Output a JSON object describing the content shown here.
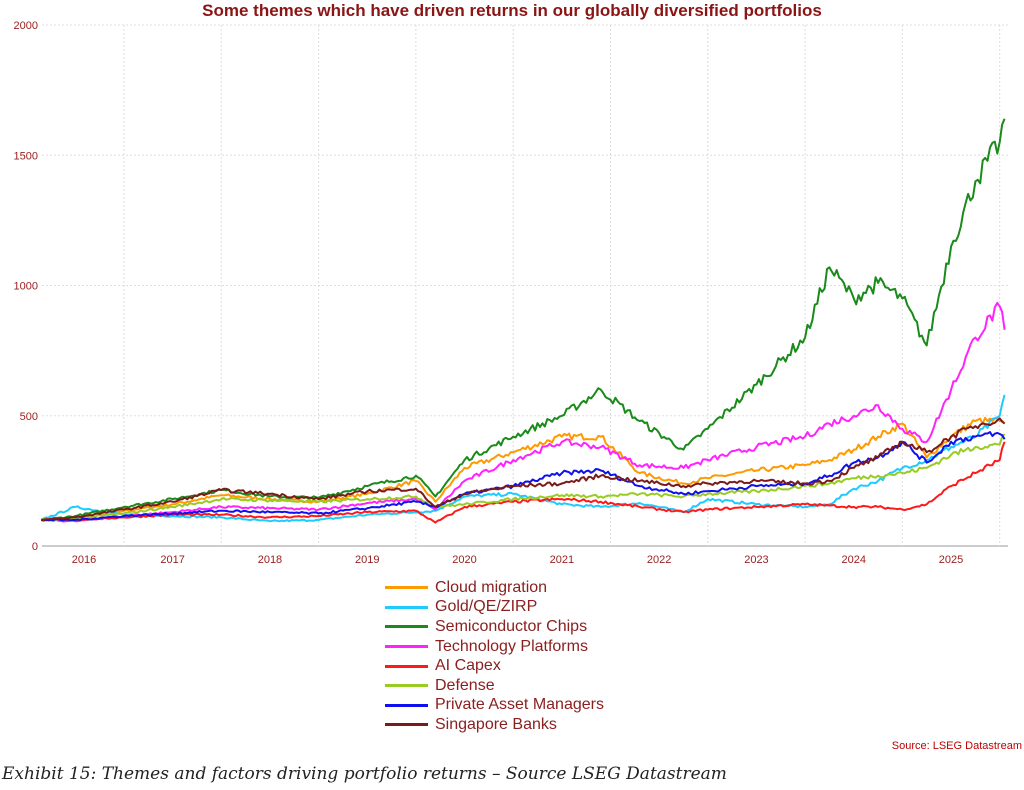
{
  "chart_data": {
    "type": "line",
    "title": "Some themes which have driven returns in our globally diversified portfolios",
    "xlabel": "",
    "ylabel": "",
    "ylim": [
      0,
      2000
    ],
    "yticks": [
      "0",
      "500",
      "1000",
      "1500",
      "2000"
    ],
    "ytick_values": [
      0,
      500,
      1000,
      1500,
      2000
    ],
    "xlim": [
      2016,
      2026.06
    ],
    "xticks": [
      "2016",
      "2017",
      "2018",
      "2019",
      "2020",
      "2021",
      "2022",
      "2023",
      "2024",
      "2025"
    ],
    "grid": true,
    "legend_position": "bottom-center",
    "x": [
      2016.15,
      2016.5,
      2017.0,
      2017.5,
      2018.0,
      2018.5,
      2019.0,
      2019.5,
      2020.0,
      2020.2,
      2020.5,
      2021.0,
      2021.5,
      2021.9,
      2022.3,
      2022.75,
      2023.0,
      2023.5,
      2024.0,
      2024.25,
      2024.5,
      2024.75,
      2025.0,
      2025.25,
      2025.5,
      2025.75,
      2026.0,
      2026.05
    ],
    "series": [
      {
        "name": "Cloud migration",
        "color": "#ff9900",
        "values": [
          100,
          110,
          135,
          160,
          195,
          180,
          170,
          200,
          250,
          170,
          300,
          360,
          420,
          420,
          280,
          240,
          260,
          290,
          310,
          330,
          370,
          420,
          470,
          340,
          420,
          480,
          480,
          470
        ]
      },
      {
        "name": "Gold/QE/ZIRP",
        "color": "#1ecbff",
        "values": [
          100,
          150,
          120,
          115,
          110,
          95,
          100,
          120,
          130,
          135,
          190,
          200,
          160,
          150,
          165,
          130,
          180,
          160,
          150,
          160,
          220,
          250,
          300,
          330,
          380,
          420,
          500,
          580
        ]
      },
      {
        "name": "Semiconductor Chips",
        "color": "#1a8a1a",
        "values": [
          100,
          115,
          150,
          180,
          215,
          190,
          185,
          230,
          270,
          190,
          330,
          420,
          500,
          600,
          480,
          370,
          450,
          620,
          800,
          1070,
          950,
          1010,
          950,
          770,
          1150,
          1400,
          1550,
          1640
        ]
      },
      {
        "name": "Technology Platforms",
        "color": "#ff22ff",
        "values": [
          100,
          95,
          115,
          130,
          150,
          145,
          140,
          165,
          180,
          140,
          250,
          330,
          400,
          380,
          310,
          300,
          330,
          380,
          420,
          470,
          500,
          540,
          450,
          400,
          600,
          800,
          920,
          830
        ]
      },
      {
        "name": "AI Capex",
        "color": "#ff1a1a",
        "values": [
          100,
          100,
          110,
          120,
          120,
          110,
          115,
          130,
          135,
          90,
          150,
          170,
          180,
          170,
          150,
          130,
          140,
          150,
          160,
          155,
          150,
          150,
          140,
          160,
          230,
          280,
          330,
          400
        ]
      },
      {
        "name": "Defense",
        "color": "#99cc22",
        "values": [
          100,
          105,
          125,
          150,
          180,
          175,
          170,
          180,
          190,
          150,
          160,
          180,
          195,
          190,
          200,
          190,
          200,
          210,
          230,
          240,
          260,
          270,
          280,
          300,
          350,
          380,
          390,
          430
        ]
      },
      {
        "name": "Private Asset Managers",
        "color": "#1010ee",
        "values": [
          100,
          100,
          115,
          125,
          135,
          130,
          125,
          145,
          170,
          150,
          200,
          230,
          280,
          290,
          230,
          200,
          210,
          230,
          240,
          270,
          320,
          340,
          400,
          320,
          400,
          420,
          430,
          410
        ]
      },
      {
        "name": "Singapore Banks",
        "color": "#7a1a1a",
        "values": [
          100,
          110,
          140,
          170,
          215,
          200,
          180,
          210,
          220,
          150,
          200,
          230,
          240,
          270,
          250,
          230,
          240,
          250,
          240,
          250,
          300,
          340,
          400,
          360,
          420,
          460,
          490,
          470
        ]
      }
    ]
  },
  "source": "Source: LSEG Datastream",
  "caption": "Exhibit 15: Themes and factors driving portfolio returns – Source LSEG Datastream"
}
